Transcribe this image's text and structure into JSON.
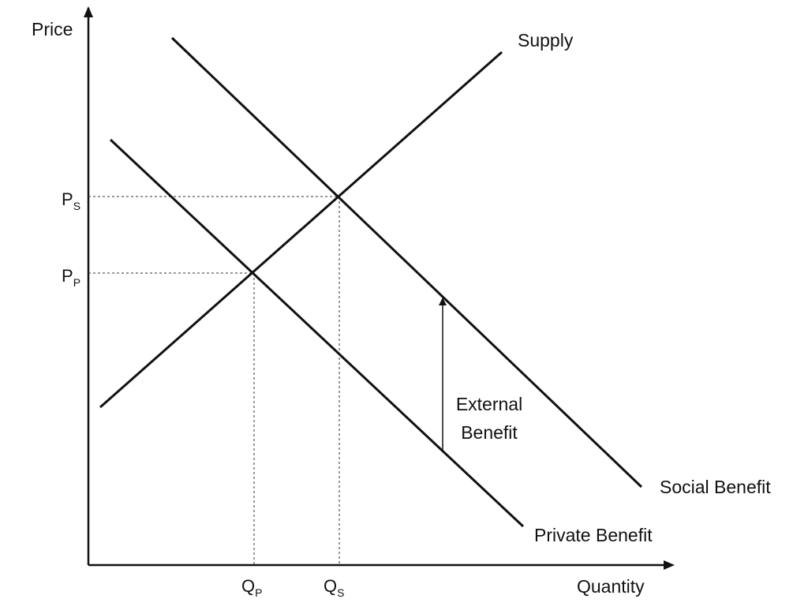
{
  "axes": {
    "y_label": "Price",
    "x_label": "Quantity"
  },
  "curves": {
    "supply": "Supply",
    "social_benefit": "Social Benefit",
    "private_benefit": "Private Benefit"
  },
  "ticks": {
    "ps": {
      "main": "P",
      "sub": "S"
    },
    "pp": {
      "main": "P",
      "sub": "P"
    },
    "qp": {
      "main": "Q",
      "sub": "P"
    },
    "qs": {
      "main": "Q",
      "sub": "S"
    }
  },
  "annotation": {
    "line1": "External",
    "line2": "Benefit"
  },
  "colors": {
    "ink": "#111111"
  }
}
